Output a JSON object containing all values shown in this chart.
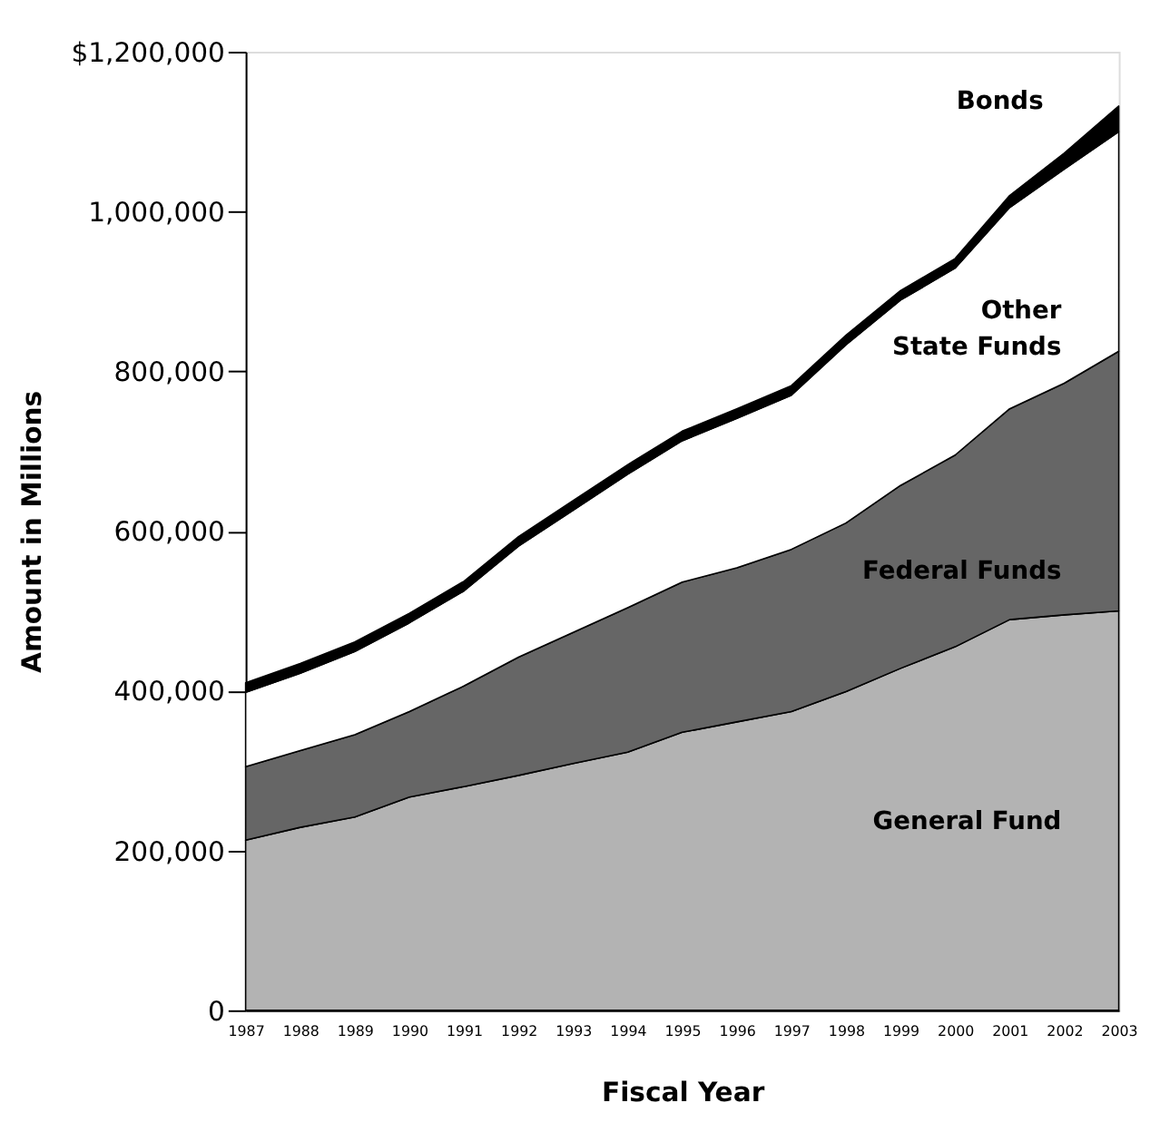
{
  "chart_data": {
    "type": "area",
    "stacked": true,
    "xlabel": "Fiscal Year",
    "ylabel": "Amount in Millions",
    "x": [
      1987,
      1988,
      1989,
      1990,
      1991,
      1992,
      1993,
      1994,
      1995,
      1996,
      1997,
      1998,
      1999,
      2000,
      2001,
      2002,
      2003
    ],
    "xlim": [
      1987,
      2003
    ],
    "xticks": [
      1987,
      1988,
      1989,
      1990,
      1991,
      1992,
      1993,
      1994,
      1995,
      1996,
      1997,
      1998,
      1999,
      2000,
      2001,
      2002,
      2003
    ],
    "ylim": [
      0,
      1200000
    ],
    "yticks": [
      {
        "value": 0,
        "label": "0"
      },
      {
        "value": 200000,
        "label": "200,000"
      },
      {
        "value": 400000,
        "label": "400,000"
      },
      {
        "value": 600000,
        "label": "600,000"
      },
      {
        "value": 800000,
        "label": "800,000"
      },
      {
        "value": 1000000,
        "label": "1,000,000"
      },
      {
        "value": 1200000,
        "label": "$1,200,000"
      }
    ],
    "grid": false,
    "legend": false,
    "series": [
      {
        "name": "General Fund",
        "color": "#b3b3b3",
        "values": [
          213000,
          229000,
          242000,
          267000,
          280000,
          294000,
          309000,
          323000,
          348000,
          361000,
          374000,
          399000,
          428000,
          455000,
          489000,
          495000,
          500000
        ]
      },
      {
        "name": "Federal Funds",
        "color": "#666666",
        "values": [
          92000,
          96000,
          103000,
          107000,
          126000,
          148000,
          164000,
          181000,
          188000,
          193000,
          203000,
          211000,
          229000,
          240000,
          264000,
          290000,
          325000
        ]
      },
      {
        "name": "Other State Funds",
        "color": "#ffffff",
        "values": [
          93000,
          97000,
          104000,
          111000,
          119000,
          139000,
          153000,
          167000,
          177000,
          187000,
          193000,
          223000,
          232000,
          234000,
          252000,
          268000,
          275000
        ]
      },
      {
        "name": "Bonds",
        "color": "#000000",
        "values": [
          12000,
          12000,
          12000,
          12000,
          12000,
          12000,
          12000,
          12000,
          12000,
          12000,
          12000,
          12000,
          12000,
          12000,
          15000,
          20000,
          32000
        ]
      }
    ]
  }
}
